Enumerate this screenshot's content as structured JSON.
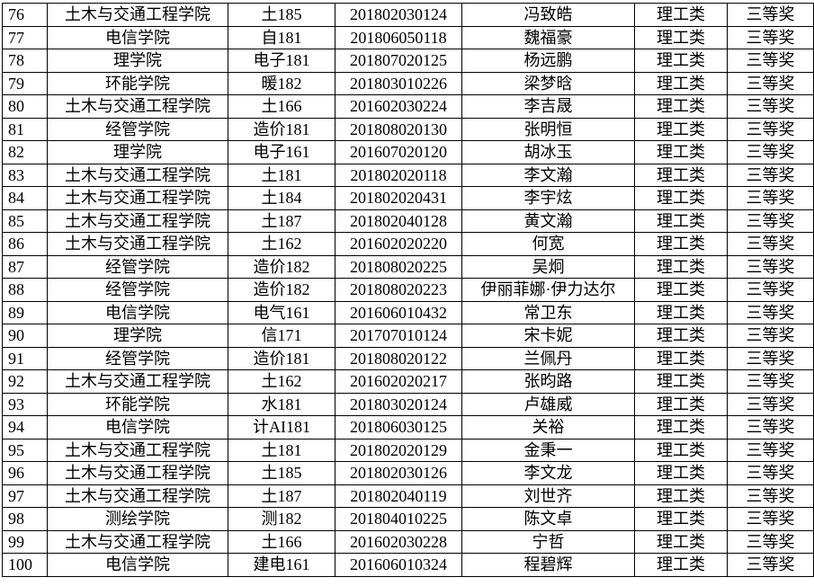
{
  "rows": [
    {
      "no": "76",
      "college": "土木与交通工程学院",
      "class": "土185",
      "id": "201802030124",
      "name": "冯致皓",
      "category": "理工类",
      "award": "三等奖"
    },
    {
      "no": "77",
      "college": "电信学院",
      "class": "自181",
      "id": "201806050118",
      "name": "魏福豪",
      "category": "理工类",
      "award": "三等奖"
    },
    {
      "no": "78",
      "college": "理学院",
      "class": "电子181",
      "id": "201807020125",
      "name": "杨远鹏",
      "category": "理工类",
      "award": "三等奖"
    },
    {
      "no": "79",
      "college": "环能学院",
      "class": "暖182",
      "id": "201803010226",
      "name": "梁梦晗",
      "category": "理工类",
      "award": "三等奖"
    },
    {
      "no": "80",
      "college": "土木与交通工程学院",
      "class": "土166",
      "id": "201602030224",
      "name": "李吉晟",
      "category": "理工类",
      "award": "三等奖"
    },
    {
      "no": "81",
      "college": "经管学院",
      "class": "造价181",
      "id": "201808020130",
      "name": "张明恒",
      "category": "理工类",
      "award": "三等奖"
    },
    {
      "no": "82",
      "college": "理学院",
      "class": "电子161",
      "id": "201607020120",
      "name": "胡冰玉",
      "category": "理工类",
      "award": "三等奖"
    },
    {
      "no": "83",
      "college": "土木与交通工程学院",
      "class": "土181",
      "id": "201802020118",
      "name": "李文瀚",
      "category": "理工类",
      "award": "三等奖"
    },
    {
      "no": "84",
      "college": "土木与交通工程学院",
      "class": "土184",
      "id": "201802020431",
      "name": "李宇炫",
      "category": "理工类",
      "award": "三等奖"
    },
    {
      "no": "85",
      "college": "土木与交通工程学院",
      "class": "土187",
      "id": "201802040128",
      "name": "黄文瀚",
      "category": "理工类",
      "award": "三等奖"
    },
    {
      "no": "86",
      "college": "土木与交通工程学院",
      "class": "土162",
      "id": "201602020220",
      "name": "何宽",
      "category": "理工类",
      "award": "三等奖"
    },
    {
      "no": "87",
      "college": "经管学院",
      "class": "造价182",
      "id": "201808020225",
      "name": "吴炯",
      "category": "理工类",
      "award": "三等奖"
    },
    {
      "no": "88",
      "college": "经管学院",
      "class": "造价182",
      "id": "201808020223",
      "name": "伊丽菲娜·伊力达尔",
      "category": "理工类",
      "award": "三等奖"
    },
    {
      "no": "89",
      "college": "电信学院",
      "class": "电气161",
      "id": "201606010432",
      "name": "常卫东",
      "category": "理工类",
      "award": "三等奖"
    },
    {
      "no": "90",
      "college": "理学院",
      "class": "信171",
      "id": "201707010124",
      "name": "宋卡妮",
      "category": "理工类",
      "award": "三等奖"
    },
    {
      "no": "91",
      "college": "经管学院",
      "class": "造价181",
      "id": "201808020122",
      "name": "兰佩丹",
      "category": "理工类",
      "award": "三等奖"
    },
    {
      "no": "92",
      "college": "土木与交通工程学院",
      "class": "土162",
      "id": "201602020217",
      "name": "张昀路",
      "category": "理工类",
      "award": "三等奖"
    },
    {
      "no": "93",
      "college": "环能学院",
      "class": "水181",
      "id": "201803020124",
      "name": "卢雄威",
      "category": "理工类",
      "award": "三等奖"
    },
    {
      "no": "94",
      "college": "电信学院",
      "class": "计AI181",
      "id": "201806030125",
      "name": "关裕",
      "category": "理工类",
      "award": "三等奖"
    },
    {
      "no": "95",
      "college": "土木与交通工程学院",
      "class": "土181",
      "id": "201802020129",
      "name": "金秉一",
      "category": "理工类",
      "award": "三等奖"
    },
    {
      "no": "96",
      "college": "土木与交通工程学院",
      "class": "土185",
      "id": "201802030126",
      "name": "李文龙",
      "category": "理工类",
      "award": "三等奖"
    },
    {
      "no": "97",
      "college": "土木与交通工程学院",
      "class": "土187",
      "id": "201802040119",
      "name": "刘世齐",
      "category": "理工类",
      "award": "三等奖"
    },
    {
      "no": "98",
      "college": "测绘学院",
      "class": "测182",
      "id": "201804010225",
      "name": "陈文卓",
      "category": "理工类",
      "award": "三等奖"
    },
    {
      "no": "99",
      "college": "土木与交通工程学院",
      "class": "土166",
      "id": "201602030228",
      "name": "宁哲",
      "category": "理工类",
      "award": "三等奖"
    },
    {
      "no": "100",
      "college": "电信学院",
      "class": "建电161",
      "id": "201606010324",
      "name": "程碧辉",
      "category": "理工类",
      "award": "三等奖"
    }
  ]
}
